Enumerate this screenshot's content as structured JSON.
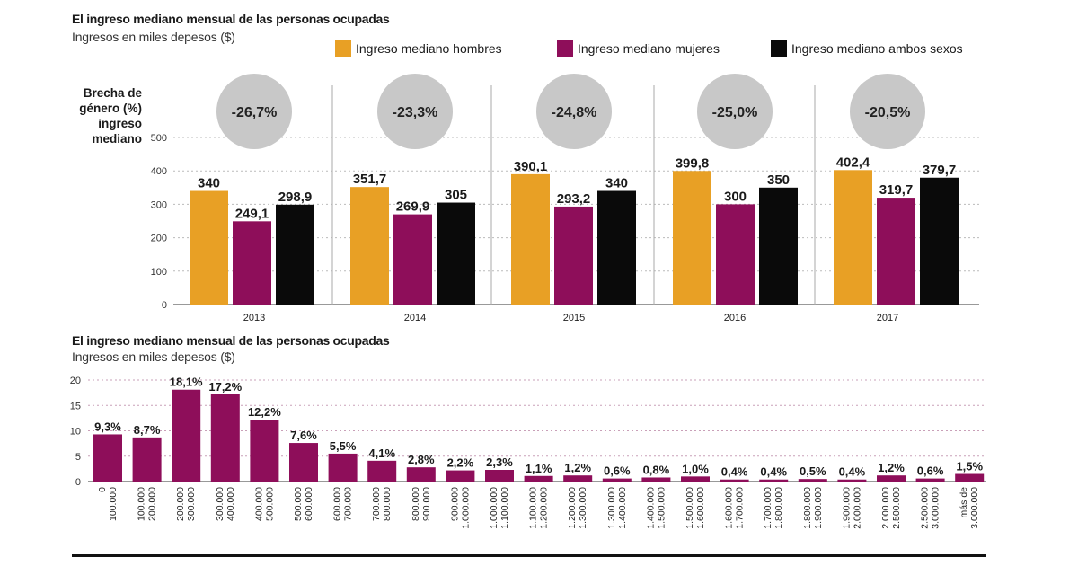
{
  "top_title": "El ingreso mediano mensual de las personas ocupadas",
  "top_subtitle": "Ingresos en miles depesos ($)",
  "gap_label": "Brecha de género (%) ingreso mediano",
  "bottom_title": "El ingreso mediano mensual de las personas ocupadas",
  "bottom_subtitle": "Ingresos en miles depesos ($)",
  "legend": [
    {
      "label": "Ingreso mediano hombres",
      "color": "#E8A025"
    },
    {
      "label": "Ingreso mediano mujeres",
      "color": "#8E0E5A"
    },
    {
      "label": "Ingreso mediano ambos sexos",
      "color": "#0A0A0A"
    }
  ],
  "chart_data": [
    {
      "type": "bar",
      "categories": [
        "2013",
        "2014",
        "2015",
        "2016",
        "2017"
      ],
      "series": [
        {
          "name": "Ingreso mediano hombres",
          "color": "#E8A025",
          "values": [
            340,
            351.7,
            390.1,
            399.8,
            402.4
          ],
          "labels": [
            "340",
            "351,7",
            "390,1",
            "399,8",
            "402,4"
          ]
        },
        {
          "name": "Ingreso mediano mujeres",
          "color": "#8E0E5A",
          "values": [
            249.1,
            269.9,
            293.2,
            300,
            319.7
          ],
          "labels": [
            "249,1",
            "269,9",
            "293,2",
            "300",
            "319,7"
          ]
        },
        {
          "name": "Ingreso mediano ambos sexos",
          "color": "#0A0A0A",
          "values": [
            298.9,
            305,
            340,
            350,
            379.7
          ],
          "labels": [
            "298,9",
            "305",
            "340",
            "350",
            "379,7"
          ]
        }
      ],
      "gap": [
        "-26,7%",
        "-23,3%",
        "-24,8%",
        "-25,0%",
        "-20,5%"
      ],
      "gap_color": "#C8C8C8",
      "ylim": [
        0,
        500
      ],
      "yticks": [
        "0",
        "100",
        "200",
        "300",
        "400",
        "500"
      ],
      "grid": true
    },
    {
      "type": "bar",
      "categories": [
        [
          "0",
          "100.000"
        ],
        [
          "100.000",
          "200.000"
        ],
        [
          "200.000",
          "300.000"
        ],
        [
          "300.000",
          "400.000"
        ],
        [
          "400.000",
          "500.000"
        ],
        [
          "500.000",
          "600.000"
        ],
        [
          "600.000",
          "700.000"
        ],
        [
          "700.000",
          "800.000"
        ],
        [
          "800.000",
          "900.000"
        ],
        [
          "900.000",
          "1.000.000"
        ],
        [
          "1.000.000",
          "1.100.000"
        ],
        [
          "1.100.000",
          "1.200.000"
        ],
        [
          "1.200.000",
          "1.300.000"
        ],
        [
          "1.300.000",
          "1.400.000"
        ],
        [
          "1.400.000",
          "1.500.000"
        ],
        [
          "1.500.000",
          "1.600.000"
        ],
        [
          "1.600.000",
          "1.700.000"
        ],
        [
          "1.700.000",
          "1.800.000"
        ],
        [
          "1.800.000",
          "1.900.000"
        ],
        [
          "1.900.000",
          "2.000.000"
        ],
        [
          "2.000.000",
          "2.500.000"
        ],
        [
          "2.500.000",
          "3.000.000"
        ],
        [
          "más de",
          "3.000.000"
        ]
      ],
      "values": [
        9.3,
        8.7,
        18.1,
        17.2,
        12.2,
        7.6,
        5.5,
        4.1,
        2.8,
        2.2,
        2.3,
        1.1,
        1.2,
        0.6,
        0.8,
        1.0,
        0.4,
        0.4,
        0.5,
        0.4,
        1.2,
        0.6,
        1.5
      ],
      "labels": [
        "9,3%",
        "8,7%",
        "18,1%",
        "17,2%",
        "12,2%",
        "7,6%",
        "5,5%",
        "4,1%",
        "2,8%",
        "2,2%",
        "2,3%",
        "1,1%",
        "1,2%",
        "0,6%",
        "0,8%",
        "1,0%",
        "0,4%",
        "0,4%",
        "0,5%",
        "0,4%",
        "1,2%",
        "0,6%",
        "1,5%"
      ],
      "color": "#8E0E5A",
      "ylim": [
        0,
        20
      ],
      "yticks": [
        "0",
        "5",
        "10",
        "15",
        "20"
      ],
      "grid": true
    }
  ]
}
